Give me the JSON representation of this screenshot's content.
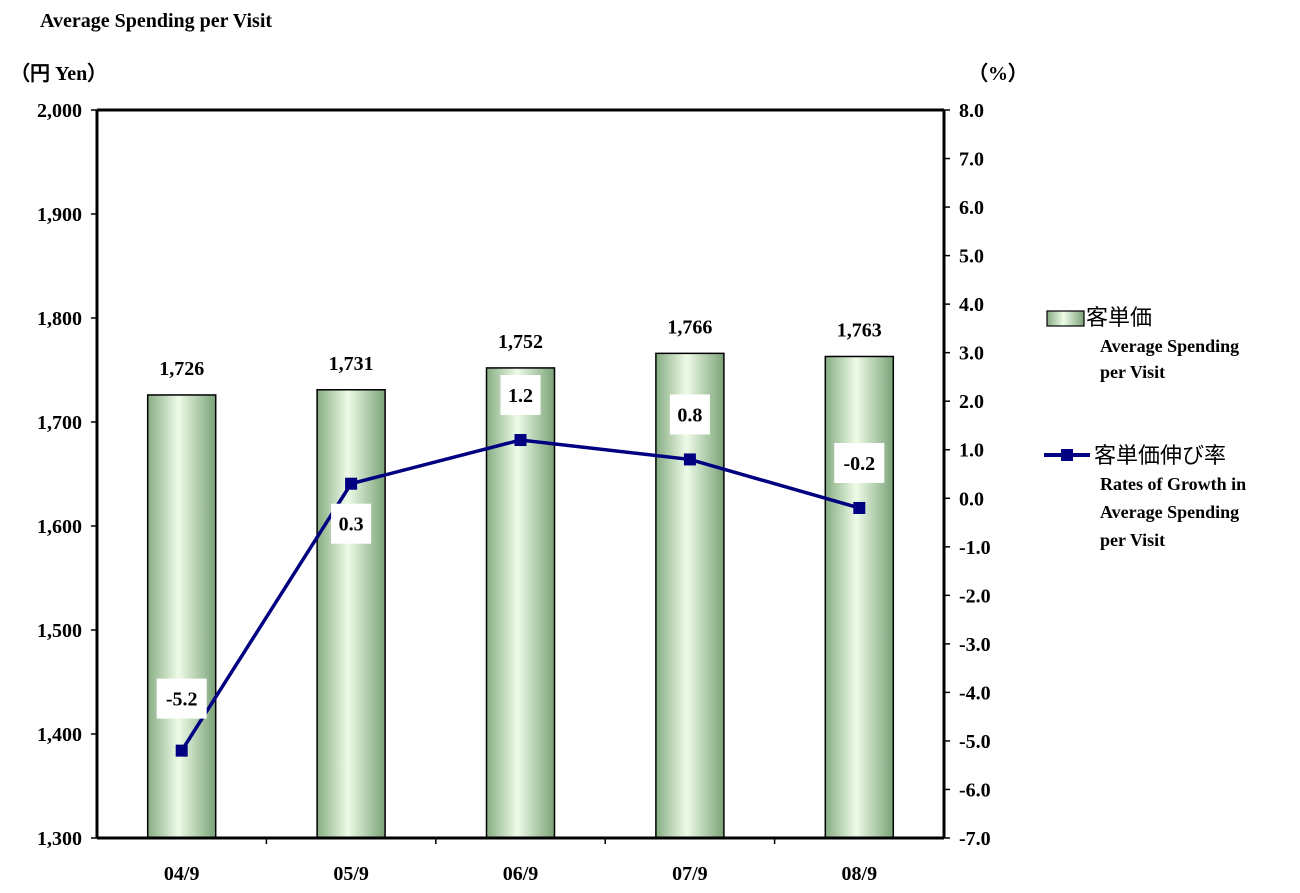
{
  "chart_data": {
    "type": "bar",
    "title": "Average Spending per Visit",
    "left_axis_unit": "（円 Yen）",
    "right_axis_unit": "（%）",
    "categories": [
      "04/9",
      "05/9",
      "06/9",
      "07/9",
      "08/9"
    ],
    "ylim": [
      1300,
      2000
    ],
    "y2lim": [
      -7.0,
      8.0
    ],
    "left_ticks": [
      "1,300",
      "1,400",
      "1,500",
      "1,600",
      "1,700",
      "1,800",
      "1,900",
      "2,000"
    ],
    "right_ticks": [
      "-7.0",
      "-6.0",
      "-5.0",
      "-4.0",
      "-3.0",
      "-2.0",
      "-1.0",
      "0.0",
      "1.0",
      "2.0",
      "3.0",
      "4.0",
      "5.0",
      "6.0",
      "7.0",
      "8.0"
    ],
    "series": [
      {
        "name": "客単価 Average Spending per Visit",
        "type": "bar",
        "axis": "left",
        "values": [
          1726,
          1731,
          1752,
          1766,
          1763
        ],
        "labels": [
          "1,726",
          "1,731",
          "1,752",
          "1,766",
          "1,763"
        ]
      },
      {
        "name": "客単価伸び率 Rates of Growth in Average Spending per Visit",
        "type": "line",
        "axis": "right",
        "values": [
          -5.2,
          0.3,
          1.2,
          0.8,
          -0.2
        ],
        "labels": [
          "-5.2",
          "0.3",
          "1.2",
          "0.8",
          "-0.2"
        ]
      }
    ],
    "legend": {
      "placement": "right",
      "bar_cjk": "客単価",
      "bar_en": [
        "Average Spending",
        "per Visit"
      ],
      "line_cjk": "客単価伸び率",
      "line_en": [
        "Rates of Growth in",
        "Average Spending",
        "per Visit"
      ]
    },
    "grid": false,
    "colors": {
      "bar_light": "#e8f8e0",
      "bar_dark": "#7fa87a",
      "line": "#000080",
      "axis": "#000000"
    }
  }
}
